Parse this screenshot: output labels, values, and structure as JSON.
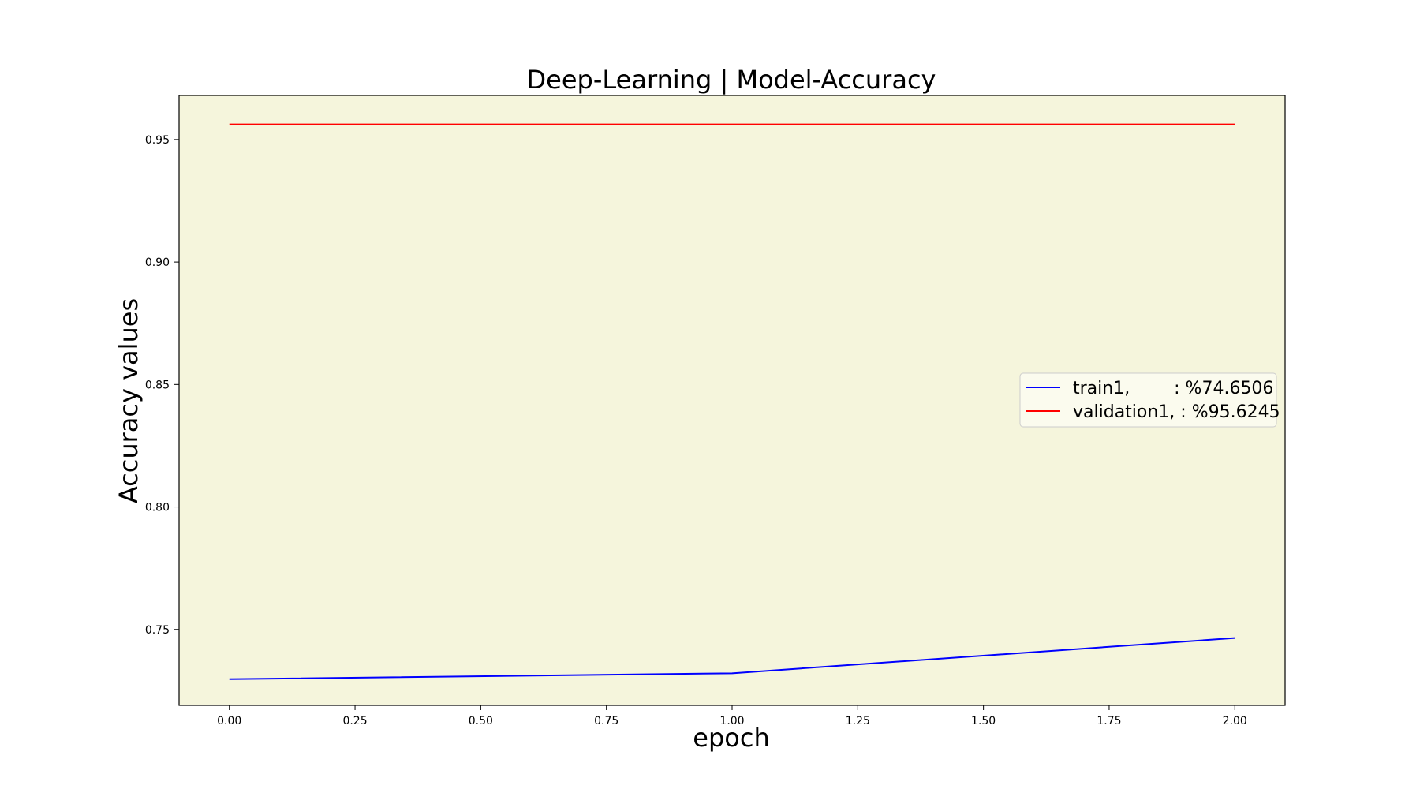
{
  "chart_data": {
    "type": "line",
    "title": "Deep-Learning | Model-Accuracy",
    "xlabel": "epoch",
    "ylabel": "Accuracy values",
    "x": [
      0,
      1,
      2
    ],
    "xlim": [
      -0.1,
      2.1
    ],
    "ylim": [
      0.719,
      0.968
    ],
    "xticks": [
      0.0,
      0.25,
      0.5,
      0.75,
      1.0,
      1.25,
      1.5,
      1.75,
      2.0
    ],
    "xtick_labels": [
      "0.00",
      "0.25",
      "0.50",
      "0.75",
      "1.00",
      "1.25",
      "1.50",
      "1.75",
      "2.00"
    ],
    "yticks": [
      0.75,
      0.8,
      0.85,
      0.9,
      0.95
    ],
    "ytick_labels": [
      "0.75",
      "0.80",
      "0.85",
      "0.90",
      "0.95"
    ],
    "grid": false,
    "legend_position": "center right",
    "plot_background": "#f5f5dc",
    "series": [
      {
        "name": "train1,        : %74.6506",
        "color": "#0000ff",
        "values": [
          0.7297,
          0.7321,
          0.7465
        ]
      },
      {
        "name": "validation1, : %95.6245",
        "color": "#ff0000",
        "values": [
          0.9562,
          0.9562,
          0.9562
        ]
      }
    ]
  }
}
